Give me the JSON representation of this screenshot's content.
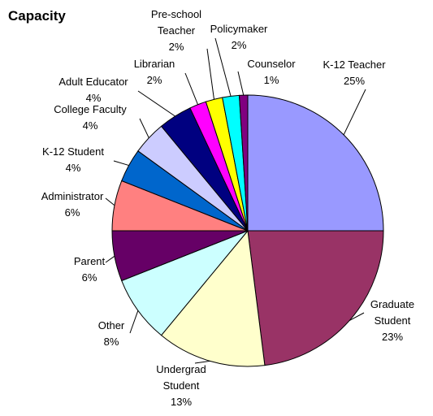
{
  "chart_data": {
    "type": "pie",
    "title": "Capacity",
    "categories": [
      "K-12 Teacher",
      "Graduate Student",
      "Undergrad Student",
      "Other",
      "Parent",
      "Administrator",
      "K-12 Student",
      "College Faculty",
      "Adult Educator",
      "Librarian",
      "Pre-school Teacher",
      "Policymaker",
      "Counselor"
    ],
    "values": [
      25,
      23,
      13,
      8,
      6,
      6,
      4,
      4,
      4,
      2,
      2,
      2,
      1
    ],
    "value_labels": [
      "25%",
      "23%",
      "13%",
      "8%",
      "6%",
      "6%",
      "4%",
      "4%",
      "4%",
      "2%",
      "2%",
      "2%",
      "1%"
    ],
    "colors": [
      "#9999ff",
      "#993366",
      "#ffffcc",
      "#ccffff",
      "#660066",
      "#ff8080",
      "#0066cc",
      "#ccccff",
      "#000080",
      "#ff00ff",
      "#ffff00",
      "#00ffff",
      "#800080"
    ]
  }
}
